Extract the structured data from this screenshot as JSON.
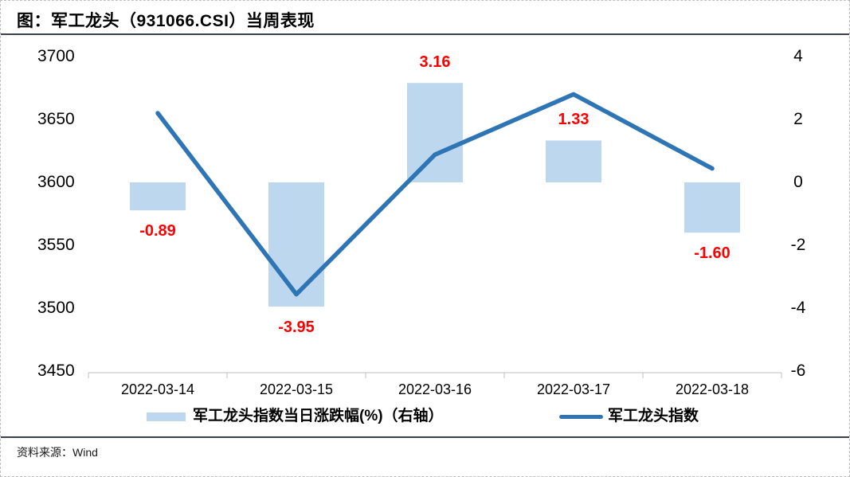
{
  "header": {
    "title": "图：军工龙头（931066.CSI）当周表现"
  },
  "footer": {
    "source_label": "资料来源：Wind"
  },
  "chart_data": {
    "type": "bar",
    "subtype": "dual-axis bar + line combo",
    "title": "军工龙头（931066.CSI）当周表现",
    "categories": [
      "2022-03-14",
      "2022-03-15",
      "2022-03-16",
      "2022-03-17",
      "2022-03-18"
    ],
    "series": [
      {
        "name": "军工龙头指数当日涨跌幅(%)（右轴）",
        "type": "bar",
        "axis": "right",
        "values": [
          -0.89,
          -3.95,
          3.16,
          1.33,
          -1.6
        ],
        "data_labels": [
          "-0.89",
          "-3.95",
          "3.16",
          "1.33",
          "-1.60"
        ],
        "color": "#BDD7EE",
        "label_color": "#FF0000"
      },
      {
        "name": "军工龙头指数",
        "type": "line",
        "axis": "left",
        "values": [
          3655,
          3511,
          3622,
          3670,
          3611
        ],
        "color": "#2E75B6"
      }
    ],
    "left_axis": {
      "min": 3450,
      "max": 3700,
      "ticks": [
        "3700",
        "3650",
        "3600",
        "3550",
        "3500",
        "3450"
      ]
    },
    "right_axis": {
      "min": -6,
      "max": 4,
      "ticks": [
        "4",
        "2",
        "0",
        "-2",
        "-4",
        "-6"
      ]
    },
    "grid": false,
    "legend_position": "bottom",
    "axis_line_color": "#BFBFBF"
  }
}
